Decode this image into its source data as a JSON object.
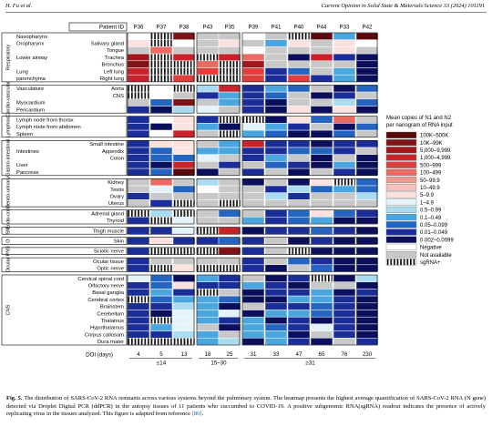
{
  "header": {
    "left": "H. Fu et al.",
    "right": "Current Opinion in Solid State & Materials Science 33 (2024) 101191"
  },
  "figure": {
    "patient_id_label": "Patient ID",
    "doi_label": "DOI (days)",
    "patients": [
      {
        "id": "P36",
        "doi": "4"
      },
      {
        "id": "P37",
        "doi": "5"
      },
      {
        "id": "P38",
        "doi": "13"
      },
      {
        "id": "P43",
        "doi": "18"
      },
      {
        "id": "P35",
        "doi": "25"
      },
      {
        "id": "P39",
        "doi": "31"
      },
      {
        "id": "P41",
        "doi": "33"
      },
      {
        "id": "P40",
        "doi": "47"
      },
      {
        "id": "P44",
        "doi": "65"
      },
      {
        "id": "P33",
        "doi": "76"
      },
      {
        "id": "P42",
        "doi": "230"
      }
    ],
    "doi_groups": [
      "≤14",
      "15–30",
      "≥31"
    ],
    "systems": [
      {
        "name": "Respiratory",
        "rows": [
          {
            "l1": "Nasopharynx",
            "l2": ""
          },
          {
            "l1": "Oropharynx",
            "l2": "Salivary gland"
          },
          {
            "l1": "",
            "l2": "Tongue"
          },
          {
            "l1": "Lower airway",
            "l2": "Trachea"
          },
          {
            "l1": "",
            "l2": "Bronchus"
          },
          {
            "l1": "Lung",
            "l2": "Left lung"
          },
          {
            "l1": "parenchyma",
            "l2": "Right lung"
          }
        ]
      },
      {
        "name": "Cardio-vascular",
        "rows": [
          {
            "l1": "Vasculature",
            "l2": "Aorta"
          },
          {
            "l1": "",
            "l2": "CNS"
          },
          {
            "l1": "Myocardium",
            "l2": ""
          },
          {
            "l1": "Pericardium",
            "l2": ""
          }
        ]
      },
      {
        "name": "Lymphoid",
        "rows": [
          {
            "l1": "Lymph node from thorax",
            "l2": ""
          },
          {
            "l1": "Lymph node from abdomen",
            "l2": ""
          },
          {
            "l1": "Spleen",
            "l2": ""
          }
        ]
      },
      {
        "name": "Gastro-intestinal",
        "rows": [
          {
            "l1": "",
            "l2": "Small intestine"
          },
          {
            "l1": "Intestines",
            "l2": "Appendix"
          },
          {
            "l1": "",
            "l2": "Colon"
          },
          {
            "l1": "Liver",
            "l2": ""
          },
          {
            "l1": "Pancreas",
            "l2": ""
          }
        ]
      },
      {
        "name": "Genito-urinary",
        "rows": [
          {
            "l1": "",
            "l2": "Kidney"
          },
          {
            "l1": "",
            "l2": "Testis"
          },
          {
            "l1": "",
            "l2": "Ovary"
          },
          {
            "l1": "",
            "l2": "Uterus"
          }
        ]
      },
      {
        "name": "Endo-crine",
        "rows": [
          {
            "l1": "",
            "l2": "Adrenal gland"
          },
          {
            "l1": "",
            "l2": "Thyroid"
          }
        ]
      },
      {
        "name": "SM",
        "rows": [
          {
            "l1": "",
            "l2": "Thigh muscle"
          }
        ]
      },
      {
        "name": "O",
        "rows": [
          {
            "l1": "",
            "l2": "Skin"
          }
        ]
      },
      {
        "name": "PNS",
        "rows": [
          {
            "l1": "",
            "l2": "Sciatic nerve"
          }
        ]
      },
      {
        "name": "Ocular",
        "rows": [
          {
            "l1": "",
            "l2": "Ocular tissue"
          },
          {
            "l1": "",
            "l2": "Optic nerve"
          }
        ]
      },
      {
        "name": "CNS",
        "rows": [
          {
            "l1": "",
            "l2": "Cervical spinal cord"
          },
          {
            "l1": "",
            "l2": "Olfactory nerve"
          },
          {
            "l1": "",
            "l2": "Basal ganglia"
          },
          {
            "l1": "",
            "l2": "Cerebral cortex"
          },
          {
            "l1": "",
            "l2": "Brainstem"
          },
          {
            "l1": "",
            "l2": "Cerebellum"
          },
          {
            "l1": "",
            "l2": "Thalamus"
          },
          {
            "l1": "",
            "l2": "Hypothalamus"
          },
          {
            "l1": "",
            "l2": "Corpus callosum"
          },
          {
            "l1": "",
            "l2": "Dura mater"
          }
        ]
      }
    ],
    "legend": {
      "title": "Mean copies of N1 and N2 per nanogram of RNA input",
      "items": [
        {
          "label": "100K–500K",
          "color": "#5a0a0a"
        },
        {
          "label": "10K–99K",
          "color": "#7f1416"
        },
        {
          "label": "5,000–9,999",
          "color": "#a3161b"
        },
        {
          "label": "1,000–4,999",
          "color": "#c8232a"
        },
        {
          "label": "500–999",
          "color": "#de3f3c"
        },
        {
          "label": "100–499",
          "color": "#ec6a62"
        },
        {
          "label": "50–99.9",
          "color": "#f19a91"
        },
        {
          "label": "10–49.9",
          "color": "#f6c1ba"
        },
        {
          "label": "5–9.9",
          "color": "#fbe2de"
        },
        {
          "label": "1–4.9",
          "color": "#e4f3fa"
        },
        {
          "label": "0.5–0.99",
          "color": "#a9dcf0"
        },
        {
          "label": "0.1–0.49",
          "color": "#4aa6df"
        },
        {
          "label": "0.05–0.099",
          "color": "#2565c2"
        },
        {
          "label": "0.01–0.049",
          "color": "#1a2d98"
        },
        {
          "label": "0.002–0.0099",
          "color": "#0b0f5c"
        },
        {
          "label": "Negative",
          "color": "#ffffff"
        },
        {
          "label": "Not available",
          "color": "#c8c8c8"
        },
        {
          "label": "sgRNA+",
          "color": "stripe"
        }
      ]
    }
  },
  "caption": {
    "fig_label": "Fig. 5.",
    "text": " The distribution of SARS-CoV-2 RNA remnants across various systems beyond the pulmonary system. The heatmap presents the highest average quantification of SARS-CoV-2 RNA (N gene) detected via Droplet Digital PCR (ddPCR) in the autopsy tissues of 11 patients who succumbed to COVID-19. A positive subgenomic RNA(sgRNA) readout indicates the presence of actively replicating virus in the tissues analyzed. This figure is adapted from reference ",
    "ref": "[80]",
    "end": "."
  }
}
